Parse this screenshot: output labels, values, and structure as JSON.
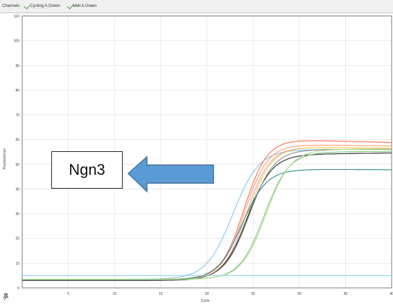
{
  "toolbar": {
    "channels_label": "Channels",
    "tabs": [
      {
        "label": "Cycling A.Green"
      },
      {
        "label": "Melt A.Green"
      }
    ]
  },
  "annotation": {
    "label": "Ngn3",
    "arrow_color": "#5b9bd5",
    "arrow_stroke": "#41719c"
  },
  "colors": {
    "grid": "#e4e4e4",
    "axis": "#777777",
    "plot_border": "#7a7a7a"
  },
  "chart_data": {
    "type": "line",
    "title": "",
    "xlabel": "Cycle",
    "ylabel": "Fluorescence",
    "xlim": [
      0,
      40
    ],
    "ylim": [
      0,
      110
    ],
    "x_ticks": [
      5,
      10,
      15,
      20,
      25,
      30,
      35,
      40
    ],
    "y_ticks": [
      10,
      20,
      30,
      40,
      50,
      60,
      70,
      80,
      90,
      100,
      110
    ],
    "grid": true,
    "series": [
      {
        "color": "#7fc6ef",
        "baseline": 3.5,
        "plateau": 56,
        "midpoint": 22.8,
        "slope": 0.7,
        "drift": 0
      },
      {
        "color": "#ff6a4d",
        "baseline": 3.2,
        "plateau": 60,
        "midpoint": 24.0,
        "slope": 0.8,
        "drift": -0.1
      },
      {
        "color": "#ff9a6a",
        "baseline": 3.5,
        "plateau": 58,
        "midpoint": 24.1,
        "slope": 0.8,
        "drift": -0.05
      },
      {
        "color": "#e8a0a8",
        "baseline": 3.3,
        "plateau": 57,
        "midpoint": 24.3,
        "slope": 0.8,
        "drift": -0.05
      },
      {
        "color": "#f4c542",
        "baseline": 3.4,
        "plateau": 57,
        "midpoint": 24.5,
        "slope": 0.8,
        "drift": -0.05
      },
      {
        "color": "#222222",
        "baseline": 3.0,
        "plateau": 54,
        "midpoint": 24.4,
        "slope": 0.75,
        "drift": 0.05
      },
      {
        "color": "#888888",
        "baseline": 3.2,
        "plateau": 56,
        "midpoint": 24.6,
        "slope": 0.75,
        "drift": 0
      },
      {
        "color": "#2a8a8a",
        "baseline": 3.3,
        "plateau": 48,
        "midpoint": 23.8,
        "slope": 0.75,
        "drift": -0.02
      },
      {
        "color": "#7dc47d",
        "baseline": 3.4,
        "plateau": 55,
        "midpoint": 26.2,
        "slope": 0.75,
        "drift": 0.02
      },
      {
        "color": "#b0e08a",
        "baseline": 3.5,
        "plateau": 56,
        "midpoint": 26.4,
        "slope": 0.75,
        "drift": 0.02
      },
      {
        "color": "#8fd0e8",
        "baseline": 5.0,
        "plateau": 5.0,
        "midpoint": 60,
        "slope": 0.5,
        "drift": 0.02
      }
    ]
  }
}
